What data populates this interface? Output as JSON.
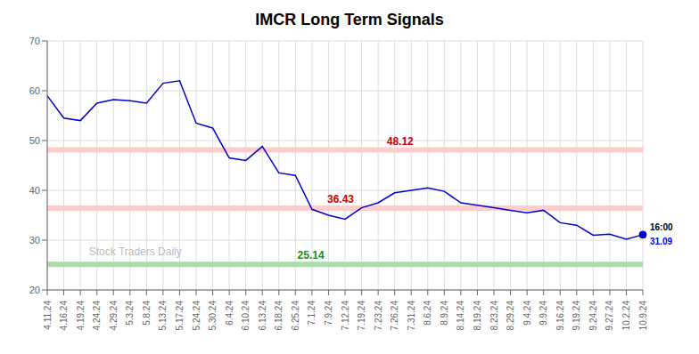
{
  "chart_data": {
    "type": "line",
    "title": "IMCR Long Term Signals",
    "categories": [
      "4.11.24",
      "4.16.24",
      "4.19.24",
      "4.24.24",
      "4.29.24",
      "5.3.24",
      "5.8.24",
      "5.13.24",
      "5.17.24",
      "5.24.24",
      "5.30.24",
      "6.4.24",
      "6.10.24",
      "6.13.24",
      "6.18.24",
      "6.25.24",
      "7.1.24",
      "7.9.24",
      "7.12.24",
      "7.19.24",
      "7.23.24",
      "7.26.24",
      "7.31.24",
      "8.6.24",
      "8.9.24",
      "8.14.24",
      "8.19.24",
      "8.23.24",
      "8.29.24",
      "9.4.24",
      "9.9.24",
      "9.16.24",
      "9.19.24",
      "9.24.24",
      "9.27.24",
      "10.2.24",
      "10.9.24"
    ],
    "values": [
      59.0,
      54.5,
      54.0,
      57.5,
      58.2,
      58.0,
      57.5,
      61.5,
      62.0,
      53.5,
      52.5,
      46.5,
      46.0,
      48.8,
      43.5,
      43.0,
      36.2,
      35.0,
      34.2,
      36.5,
      37.5,
      39.5,
      40.0,
      40.5,
      39.8,
      37.5,
      37.0,
      36.5,
      36.0,
      35.5,
      36.0,
      33.5,
      33.0,
      31.0,
      31.2,
      30.2,
      31.09
    ],
    "color": "#0000cc",
    "ylim": [
      20,
      70
    ],
    "yticks": [
      20,
      30,
      40,
      50,
      60,
      70
    ],
    "grid": true,
    "hlines": [
      {
        "value": 48.12,
        "label": "48.12",
        "color": "#ffcccc",
        "label_color": "#cc0000"
      },
      {
        "value": 36.43,
        "label": "36.43",
        "color": "#ffcccc",
        "label_color": "#cc0000"
      },
      {
        "value": 25.14,
        "label": "25.14",
        "color": "#aaddaa",
        "label_color": "#228822"
      }
    ],
    "end_labels": [
      {
        "text": "16:00"
      },
      {
        "text": "31.09",
        "color": "#0000ff"
      }
    ],
    "watermark": {
      "text": "Stock Traders Daily",
      "color": "#bbbbbb"
    }
  }
}
